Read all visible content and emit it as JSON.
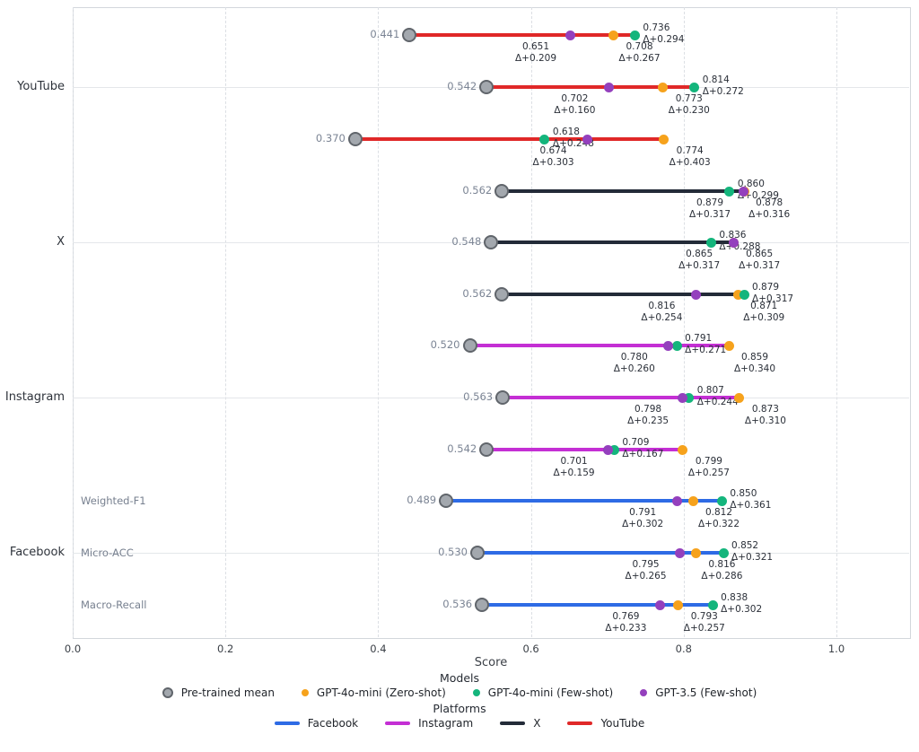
{
  "chart_data": {
    "type": "dumbbell",
    "title": "",
    "xlabel": "Score",
    "xticks": [
      "0.0",
      "0.2",
      "0.4",
      "0.6",
      "0.8",
      "1.0"
    ],
    "xtick_values": [
      0.0,
      0.2,
      0.4,
      0.6,
      0.8,
      1.0
    ],
    "xlim": [
      0.0,
      1.095
    ],
    "grid": "dashed-vertical and solid-horizontal at platform ticks",
    "colors": {
      "facebook": "#2e6be5",
      "instagram": "#c42fd4",
      "x": "#232b38",
      "youtube": "#e02828",
      "pretrained_fill": "#a3a8ae",
      "pretrained_edge": "#60656b",
      "gpt4o_mini_zero_shot": "#f6a21c",
      "gpt4o_mini_few_shot": "#14b57c",
      "gpt35_few_shot": "#9440bd"
    },
    "y_axis_labels": [
      {
        "label": "YouTube",
        "row_index": 1
      },
      {
        "label": "X",
        "row_index": 4
      },
      {
        "label": "Instagram",
        "row_index": 7
      },
      {
        "label": "Facebook",
        "row_index": 10
      }
    ],
    "rows": [
      {
        "platform": "youtube",
        "row_label": "",
        "mean": 0.441,
        "points": [
          {
            "model": "GPT-3.5 (Few-shot)",
            "color_key": "gpt35_few_shot",
            "value": 0.651,
            "delta": "Δ+0.209",
            "annotation": "below_left"
          },
          {
            "model": "GPT-4o-mini (Zero-shot)",
            "color_key": "gpt4o_mini_zero_shot",
            "value": 0.708,
            "delta": "Δ+0.267",
            "annotation": "below_right"
          },
          {
            "model": "GPT-4o-mini (Few-shot)",
            "color_key": "gpt4o_mini_few_shot",
            "value": 0.736,
            "delta": "Δ+0.294",
            "annotation": "top"
          }
        ]
      },
      {
        "platform": "youtube",
        "row_label": "",
        "mean": 0.542,
        "points": [
          {
            "model": "GPT-3.5 (Few-shot)",
            "color_key": "gpt35_few_shot",
            "value": 0.702,
            "delta": "Δ+0.160",
            "annotation": "below_left"
          },
          {
            "model": "GPT-4o-mini (Zero-shot)",
            "color_key": "gpt4o_mini_zero_shot",
            "value": 0.773,
            "delta": "Δ+0.230",
            "annotation": "below_right"
          },
          {
            "model": "GPT-4o-mini (Few-shot)",
            "color_key": "gpt4o_mini_few_shot",
            "value": 0.814,
            "delta": "Δ+0.272",
            "annotation": "top"
          }
        ]
      },
      {
        "platform": "youtube",
        "row_label": "",
        "mean": 0.37,
        "points": [
          {
            "model": "GPT-3.5 (Few-shot)",
            "color_key": "gpt35_few_shot",
            "value": 0.674,
            "delta": "Δ+0.303",
            "annotation": "below_left"
          },
          {
            "model": "GPT-4o-mini (Zero-shot)",
            "color_key": "gpt4o_mini_zero_shot",
            "value": 0.774,
            "delta": "Δ+0.403",
            "annotation": "below_right"
          },
          {
            "model": "GPT-4o-mini (Few-shot)",
            "color_key": "gpt4o_mini_few_shot",
            "value": 0.618,
            "delta": "Δ+0.248",
            "annotation": "top"
          }
        ]
      },
      {
        "platform": "x",
        "row_label": "",
        "mean": 0.562,
        "points": [
          {
            "model": "GPT-4o-mini (Zero-shot)",
            "color_key": "gpt4o_mini_zero_shot",
            "value": 0.879,
            "delta": "Δ+0.317",
            "annotation": "below_left"
          },
          {
            "model": "GPT-3.5 (Few-shot)",
            "color_key": "gpt35_few_shot",
            "value": 0.878,
            "delta": "Δ+0.316",
            "annotation": "below_right"
          },
          {
            "model": "GPT-4o-mini (Few-shot)",
            "color_key": "gpt4o_mini_few_shot",
            "value": 0.86,
            "delta": "Δ+0.299",
            "annotation": "top"
          }
        ]
      },
      {
        "platform": "x",
        "row_label": "",
        "mean": 0.548,
        "points": [
          {
            "model": "GPT-4o-mini (Zero-shot)",
            "color_key": "gpt4o_mini_zero_shot",
            "value": 0.865,
            "delta": "Δ+0.317",
            "annotation": "below_left"
          },
          {
            "model": "GPT-3.5 (Few-shot)",
            "color_key": "gpt35_few_shot",
            "value": 0.865,
            "delta": "Δ+0.317",
            "annotation": "below_right"
          },
          {
            "model": "GPT-4o-mini (Few-shot)",
            "color_key": "gpt4o_mini_few_shot",
            "value": 0.836,
            "delta": "Δ+0.288",
            "annotation": "top"
          }
        ]
      },
      {
        "platform": "x",
        "row_label": "",
        "mean": 0.562,
        "points": [
          {
            "model": "GPT-3.5 (Few-shot)",
            "color_key": "gpt35_few_shot",
            "value": 0.816,
            "delta": "Δ+0.254",
            "annotation": "below_left"
          },
          {
            "model": "GPT-4o-mini (Zero-shot)",
            "color_key": "gpt4o_mini_zero_shot",
            "value": 0.871,
            "delta": "Δ+0.309",
            "annotation": "below_right"
          },
          {
            "model": "GPT-4o-mini (Few-shot)",
            "color_key": "gpt4o_mini_few_shot",
            "value": 0.879,
            "delta": "Δ+0.317",
            "annotation": "top"
          }
        ]
      },
      {
        "platform": "instagram",
        "row_label": "",
        "mean": 0.52,
        "points": [
          {
            "model": "GPT-3.5 (Few-shot)",
            "color_key": "gpt35_few_shot",
            "value": 0.78,
            "delta": "Δ+0.260",
            "annotation": "below_left"
          },
          {
            "model": "GPT-4o-mini (Zero-shot)",
            "color_key": "gpt4o_mini_zero_shot",
            "value": 0.859,
            "delta": "Δ+0.340",
            "annotation": "below_right"
          },
          {
            "model": "GPT-4o-mini (Few-shot)",
            "color_key": "gpt4o_mini_few_shot",
            "value": 0.791,
            "delta": "Δ+0.271",
            "annotation": "top"
          }
        ]
      },
      {
        "platform": "instagram",
        "row_label": "",
        "mean": 0.563,
        "points": [
          {
            "model": "GPT-3.5 (Few-shot)",
            "color_key": "gpt35_few_shot",
            "value": 0.798,
            "delta": "Δ+0.235",
            "annotation": "below_left"
          },
          {
            "model": "GPT-4o-mini (Zero-shot)",
            "color_key": "gpt4o_mini_zero_shot",
            "value": 0.873,
            "delta": "Δ+0.310",
            "annotation": "below_right"
          },
          {
            "model": "GPT-4o-mini (Few-shot)",
            "color_key": "gpt4o_mini_few_shot",
            "value": 0.807,
            "delta": "Δ+0.244",
            "annotation": "top"
          }
        ]
      },
      {
        "platform": "instagram",
        "row_label": "",
        "mean": 0.542,
        "points": [
          {
            "model": "GPT-3.5 (Few-shot)",
            "color_key": "gpt35_few_shot",
            "value": 0.701,
            "delta": "Δ+0.159",
            "annotation": "below_left"
          },
          {
            "model": "GPT-4o-mini (Zero-shot)",
            "color_key": "gpt4o_mini_zero_shot",
            "value": 0.799,
            "delta": "Δ+0.257",
            "annotation": "below_right"
          },
          {
            "model": "GPT-4o-mini (Few-shot)",
            "color_key": "gpt4o_mini_few_shot",
            "value": 0.709,
            "delta": "Δ+0.167",
            "annotation": "top"
          }
        ]
      },
      {
        "platform": "facebook",
        "row_label": "Weighted-F1",
        "mean": 0.489,
        "points": [
          {
            "model": "GPT-3.5 (Few-shot)",
            "color_key": "gpt35_few_shot",
            "value": 0.791,
            "delta": "Δ+0.302",
            "annotation": "below_left"
          },
          {
            "model": "GPT-4o-mini (Zero-shot)",
            "color_key": "gpt4o_mini_zero_shot",
            "value": 0.812,
            "delta": "Δ+0.322",
            "annotation": "below_right"
          },
          {
            "model": "GPT-4o-mini (Few-shot)",
            "color_key": "gpt4o_mini_few_shot",
            "value": 0.85,
            "delta": "Δ+0.361",
            "annotation": "top"
          }
        ]
      },
      {
        "platform": "facebook",
        "row_label": "Micro-ACC",
        "mean": 0.53,
        "points": [
          {
            "model": "GPT-3.5 (Few-shot)",
            "color_key": "gpt35_few_shot",
            "value": 0.795,
            "delta": "Δ+0.265",
            "annotation": "below_left"
          },
          {
            "model": "GPT-4o-mini (Zero-shot)",
            "color_key": "gpt4o_mini_zero_shot",
            "value": 0.816,
            "delta": "Δ+0.286",
            "annotation": "below_right"
          },
          {
            "model": "GPT-4o-mini (Few-shot)",
            "color_key": "gpt4o_mini_few_shot",
            "value": 0.852,
            "delta": "Δ+0.321",
            "annotation": "top"
          }
        ]
      },
      {
        "platform": "facebook",
        "row_label": "Macro-Recall",
        "mean": 0.536,
        "points": [
          {
            "model": "GPT-3.5 (Few-shot)",
            "color_key": "gpt35_few_shot",
            "value": 0.769,
            "delta": "Δ+0.233",
            "annotation": "below_left"
          },
          {
            "model": "GPT-4o-mini (Zero-shot)",
            "color_key": "gpt4o_mini_zero_shot",
            "value": 0.793,
            "delta": "Δ+0.257",
            "annotation": "below_right"
          },
          {
            "model": "GPT-4o-mini (Few-shot)",
            "color_key": "gpt4o_mini_few_shot",
            "value": 0.838,
            "delta": "Δ+0.302",
            "annotation": "top"
          }
        ]
      }
    ],
    "legend_models": {
      "title": "Models",
      "items": [
        {
          "label": "Pre-trained mean",
          "color_key": "pretrained_fill",
          "marker": "ring-dot"
        },
        {
          "label": "GPT-4o-mini (Zero-shot)",
          "color_key": "gpt4o_mini_zero_shot",
          "marker": "dot"
        },
        {
          "label": "GPT-4o-mini (Few-shot)",
          "color_key": "gpt4o_mini_few_shot",
          "marker": "dot"
        },
        {
          "label": "GPT-3.5 (Few-shot)",
          "color_key": "gpt35_few_shot",
          "marker": "dot"
        }
      ]
    },
    "legend_platforms": {
      "title": "Platforms",
      "items": [
        {
          "label": "Facebook",
          "color_key": "facebook"
        },
        {
          "label": "Instagram",
          "color_key": "instagram"
        },
        {
          "label": "X",
          "color_key": "x"
        },
        {
          "label": "YouTube",
          "color_key": "youtube"
        }
      ]
    }
  }
}
